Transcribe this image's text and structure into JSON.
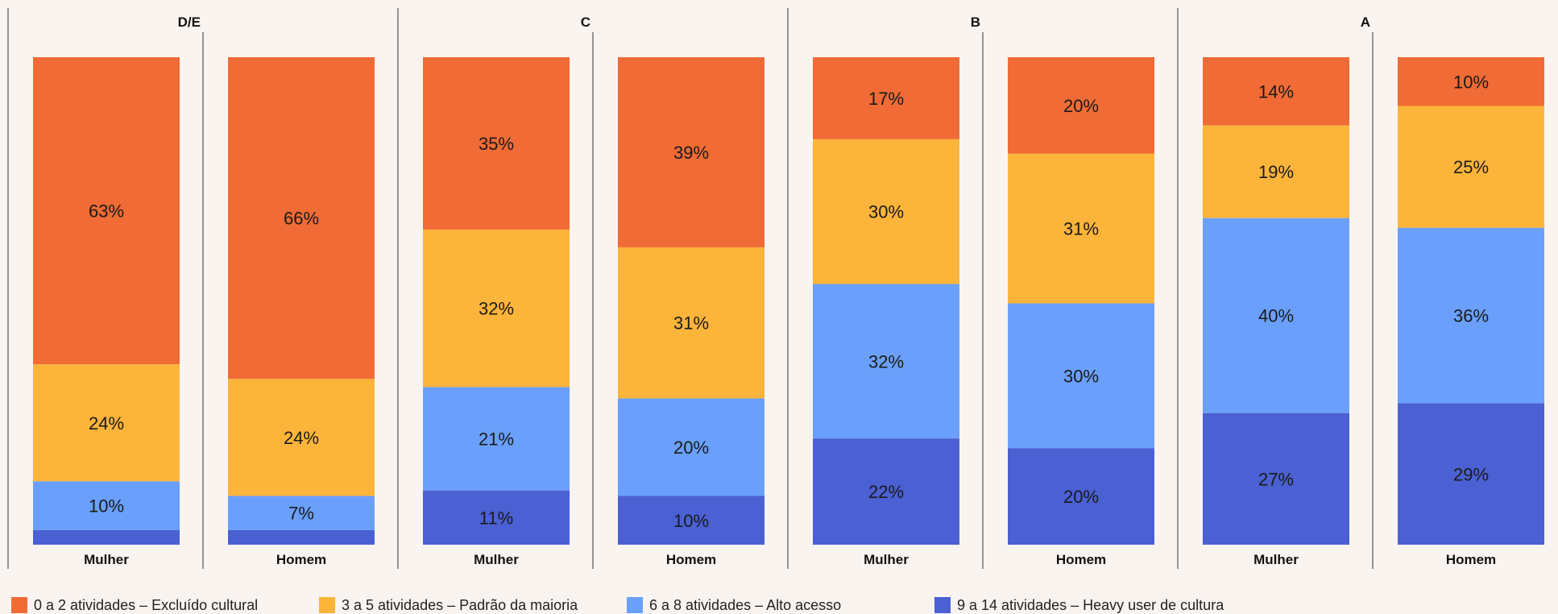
{
  "colors": {
    "background": "#f9f4f0",
    "divider": "#333333"
  },
  "legend": [
    {
      "label": "0 a 2 atividades – Excluído cultural",
      "color": "#f06b35"
    },
    {
      "label": "3 a 5 atividades – Padrão da maioria",
      "color": "#fdb43b"
    },
    {
      "label": "6 a 8 atividades – Alto acesso",
      "color": "#6aa0fb"
    },
    {
      "label": "9 a 14 atividades – Heavy user de cultura",
      "color": "#4a60d3"
    }
  ],
  "chart_data": {
    "type": "bar",
    "stacked": true,
    "normalized_percent": true,
    "grid": false,
    "legend_position": "bottom",
    "groups": [
      {
        "name": "D/E",
        "categories": [
          "Mulher",
          "Homem"
        ]
      },
      {
        "name": "C",
        "categories": [
          "Mulher",
          "Homem"
        ]
      },
      {
        "name": "B",
        "categories": [
          "Mulher",
          "Homem"
        ]
      },
      {
        "name": "A",
        "categories": [
          "Mulher",
          "Homem"
        ]
      }
    ],
    "series": [
      {
        "name": "0 a 2 atividades – Excluído cultural",
        "color": "#f06b35",
        "values": [
          63,
          66,
          35,
          39,
          17,
          20,
          14,
          10
        ],
        "labels": [
          "63%",
          "66%",
          "35%",
          "39%",
          "17%",
          "20%",
          "14%",
          "10%"
        ]
      },
      {
        "name": "3 a 5 atividades – Padrão da maioria",
        "color": "#fdb43b",
        "values": [
          24,
          24,
          32,
          31,
          30,
          31,
          19,
          25
        ],
        "labels": [
          "24%",
          "24%",
          "32%",
          "31%",
          "30%",
          "31%",
          "19%",
          "25%"
        ]
      },
      {
        "name": "6 a 8 atividades – Alto acesso",
        "color": "#6aa0fb",
        "values": [
          10,
          7,
          21,
          20,
          32,
          30,
          40,
          36
        ],
        "labels": [
          "10%",
          "7%",
          "21%",
          "20%",
          "32%",
          "30%",
          "40%",
          "36%"
        ]
      },
      {
        "name": "9 a 14 atividades – Heavy user de cultura",
        "color": "#4a60d3",
        "values": [
          3,
          3,
          11,
          10,
          22,
          20,
          27,
          29
        ],
        "labels": [
          "",
          "",
          "11%",
          "10%",
          "22%",
          "20%",
          "27%",
          "29%"
        ]
      }
    ]
  }
}
